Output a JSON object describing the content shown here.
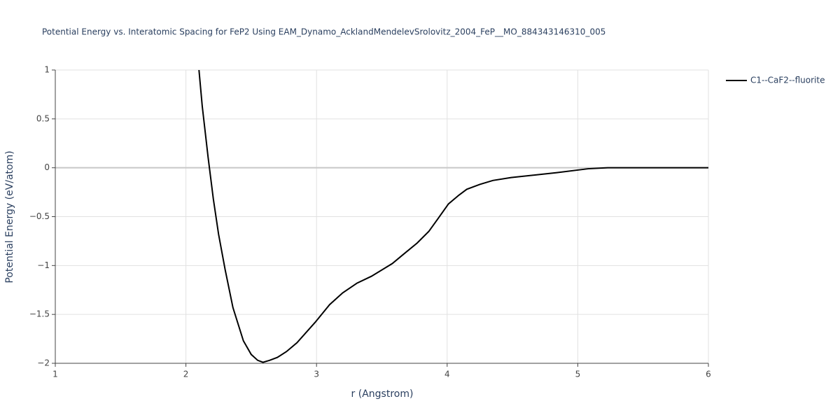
{
  "chart_data": {
    "type": "line",
    "title": "Potential Energy vs. Interatomic Spacing for FeP2 Using EAM_Dynamo_AcklandMendelevSrolovitz_2004_FeP__MO_884343146310_005",
    "x_label": "r (Angstrom)",
    "y_label": "Potential Energy (eV/atom)",
    "xlim": [
      1,
      6
    ],
    "ylim": [
      -2,
      1
    ],
    "xticks": [
      1,
      2,
      3,
      4,
      5,
      6
    ],
    "yticks": [
      {
        "value": -2,
        "label": "−2"
      },
      {
        "value": -1.5,
        "label": "−1.5"
      },
      {
        "value": -1,
        "label": "−1"
      },
      {
        "value": -0.5,
        "label": "−0.5"
      },
      0,
      0.5,
      1
    ],
    "grid": true,
    "legend": "top-right",
    "series": [
      {
        "name": "C1--CaF2--fluorite",
        "color": "#000000",
        "x": [
          2.1,
          2.125,
          2.17,
          2.21,
          2.25,
          2.3,
          2.36,
          2.44,
          2.5,
          2.55,
          2.59,
          2.64,
          2.7,
          2.77,
          2.85,
          2.99,
          3.1,
          3.2,
          3.31,
          3.42,
          3.58,
          3.67,
          3.77,
          3.86,
          3.93,
          4.01,
          4.09,
          4.15,
          4.25,
          4.35,
          4.49,
          4.84,
          5.08,
          5.23,
          6
        ],
        "values": [
          1.0,
          0.63,
          0.105,
          -0.32,
          -0.68,
          -1.04,
          -1.43,
          -1.77,
          -1.91,
          -1.97,
          -1.99,
          -1.97,
          -1.94,
          -1.88,
          -1.79,
          -1.58,
          -1.4,
          -1.28,
          -1.18,
          -1.11,
          -0.98,
          -0.88,
          -0.77,
          -0.65,
          -0.52,
          -0.37,
          -0.28,
          -0.22,
          -0.17,
          -0.13,
          -0.1,
          -0.05,
          -0.01,
          0,
          0
        ]
      }
    ]
  }
}
